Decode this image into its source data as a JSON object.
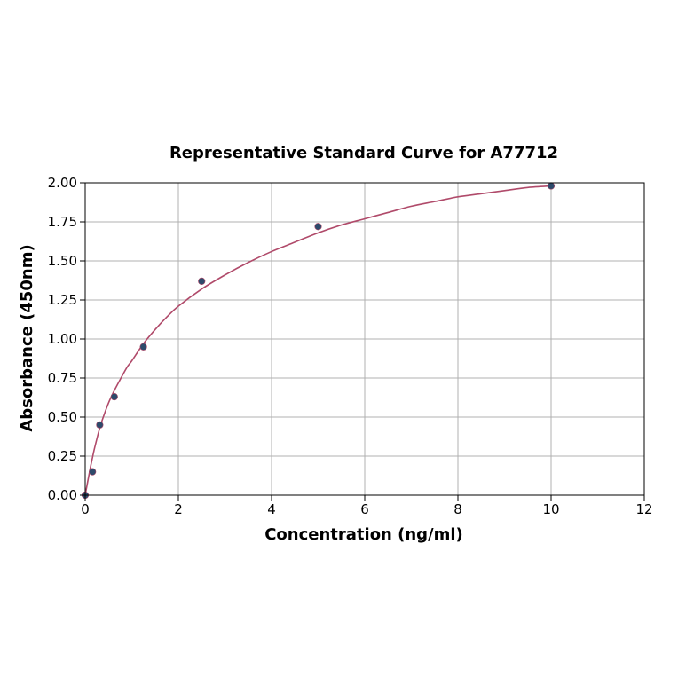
{
  "chart_data": {
    "type": "scatter",
    "title": "Representative Standard Curve for A77712",
    "xlabel": "Concentration (ng/ml)",
    "ylabel": "Absorbance (450nm)",
    "xlim": [
      0,
      12
    ],
    "ylim": [
      0,
      2.0
    ],
    "x_ticks": [
      0,
      2,
      4,
      6,
      8,
      10,
      12
    ],
    "y_ticks": [
      0.0,
      0.25,
      0.5,
      0.75,
      1.0,
      1.25,
      1.5,
      1.75,
      2.0
    ],
    "x_tick_labels": [
      "0",
      "2",
      "4",
      "6",
      "8",
      "10",
      "12"
    ],
    "y_tick_labels": [
      "0.00",
      "0.25",
      "0.50",
      "0.75",
      "1.00",
      "1.25",
      "1.50",
      "1.75",
      "2.00"
    ],
    "grid": true,
    "points": {
      "x": [
        0,
        0.156,
        0.312,
        0.625,
        1.25,
        2.5,
        5,
        10
      ],
      "y": [
        0.0,
        0.15,
        0.45,
        0.63,
        0.95,
        1.37,
        1.72,
        1.98
      ]
    },
    "fit_curve": {
      "x": [
        0,
        0.1,
        0.156,
        0.2,
        0.312,
        0.4,
        0.5,
        0.625,
        0.75,
        0.9,
        1.0,
        1.25,
        1.5,
        1.75,
        2.0,
        2.5,
        3.0,
        3.5,
        4.0,
        4.5,
        5.0,
        5.5,
        6.0,
        6.5,
        7.0,
        7.5,
        8.0,
        8.5,
        9.0,
        9.5,
        10.0
      ],
      "y": [
        0.0,
        0.16,
        0.24,
        0.3,
        0.43,
        0.51,
        0.59,
        0.67,
        0.74,
        0.82,
        0.86,
        0.97,
        1.06,
        1.14,
        1.21,
        1.32,
        1.41,
        1.49,
        1.56,
        1.62,
        1.68,
        1.73,
        1.77,
        1.81,
        1.85,
        1.88,
        1.91,
        1.93,
        1.95,
        1.97,
        1.98
      ]
    },
    "colors": {
      "point": "#2e4a6b",
      "curve": "#b04a6a",
      "grid": "#b0b0b0"
    }
  }
}
